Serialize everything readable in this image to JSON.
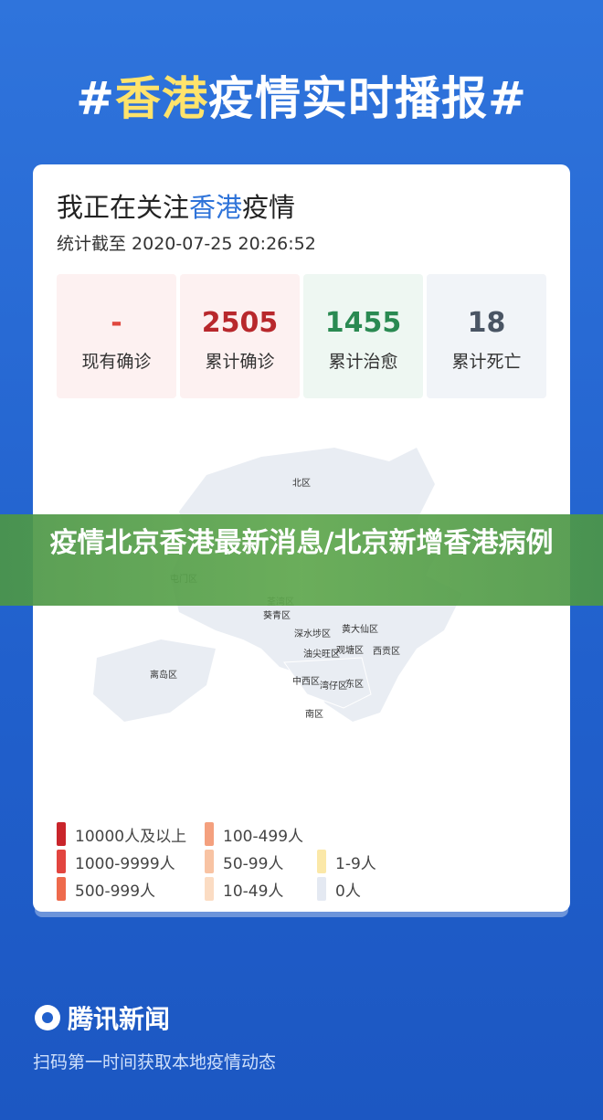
{
  "header": {
    "title_parts": [
      "#",
      "香港",
      "疫情实时播报#"
    ]
  },
  "card": {
    "title_parts": [
      "我正在关注",
      "香港",
      "疫情"
    ],
    "timestamp": "统计截至 2020-07-25 20:26:52",
    "stats": [
      {
        "value": "-",
        "label": "现有确诊",
        "color": "#e0483f",
        "bg": "#fdf1f1"
      },
      {
        "value": "2505",
        "label": "累计确诊",
        "color": "#b8282c",
        "bg": "#fdf1f1"
      },
      {
        "value": "1455",
        "label": "累计治愈",
        "color": "#2a8a52",
        "bg": "#eef7f2"
      },
      {
        "value": "18",
        "label": "累计死亡",
        "color": "#4a5564",
        "bg": "#f1f4f8"
      }
    ]
  },
  "map": {
    "districts": [
      "北区",
      "屯门区",
      "荃湾区",
      "葵青区",
      "深水埗区",
      "黄大仙区",
      "观塘区",
      "油尖旺区",
      "西贡区",
      "离岛区",
      "中西区",
      "湾仔区",
      "东区",
      "南区"
    ]
  },
  "legend": [
    {
      "label": "10000人及以上",
      "color": "#c9252b"
    },
    {
      "label": "1000-9999人",
      "color": "#e2453f"
    },
    {
      "label": "500-999人",
      "color": "#ee6a4c"
    },
    {
      "label": "100-499人",
      "color": "#f4a07e"
    },
    {
      "label": "50-99人",
      "color": "#f8c3a3"
    },
    {
      "label": "10-49人",
      "color": "#fbdcc3"
    },
    {
      "label": "1-9人",
      "color": "#fbe8a8"
    },
    {
      "label": "0人",
      "color": "#e4e9f2"
    }
  ],
  "banner": {
    "title": "疫情北京香港最新消息/北京新增香港病例"
  },
  "footer": {
    "brand": "腾讯新闻",
    "slogan": "扫码第一时间获取本地疫情动态"
  }
}
